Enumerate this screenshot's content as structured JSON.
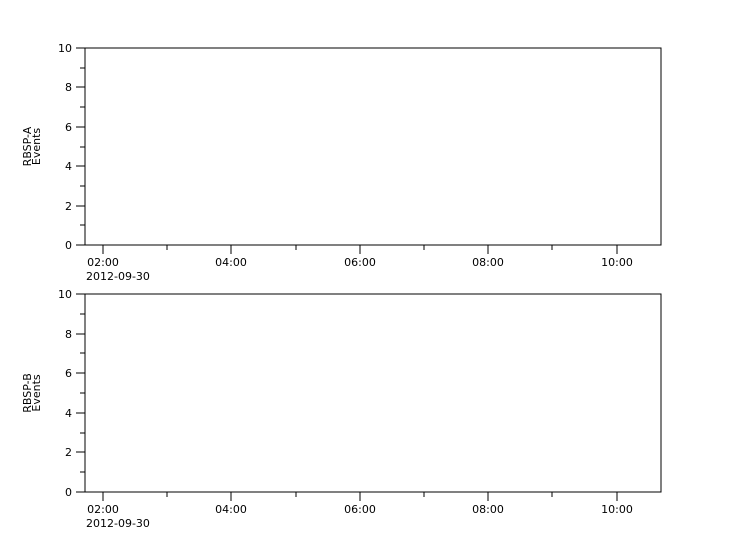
{
  "colors": {
    "background": "#ffffff",
    "axis": "#000000",
    "text": "#000000"
  },
  "chart_data": [
    {
      "type": "line",
      "title": "",
      "ylabel_lines": [
        "RBSP-A",
        "Events"
      ],
      "ylabel": "RBSP-A Events",
      "ylim": [
        0,
        10
      ],
      "ytick_major": [
        {
          "value": 0,
          "label": "0"
        },
        {
          "value": 2,
          "label": "2"
        },
        {
          "value": 4,
          "label": "4"
        },
        {
          "value": 6,
          "label": "6"
        },
        {
          "value": 8,
          "label": "8"
        },
        {
          "value": 10,
          "label": "10"
        }
      ],
      "ytick_minor_values": [
        1,
        3,
        5,
        7,
        9
      ],
      "x_axis_range_hours": [
        1.72,
        10.69
      ],
      "xtick_major": [
        {
          "hour": 2,
          "label": "02:00"
        },
        {
          "hour": 4,
          "label": "04:00"
        },
        {
          "hour": 6,
          "label": "06:00"
        },
        {
          "hour": 8,
          "label": "08:00"
        },
        {
          "hour": 10,
          "label": "10:00"
        }
      ],
      "xtick_minor_hours": [
        3,
        5,
        7,
        9
      ],
      "x_date_label": "2012-09-30",
      "grid": false,
      "legend": null,
      "series": []
    },
    {
      "type": "line",
      "title": "",
      "ylabel_lines": [
        "RBSP-B",
        "Events"
      ],
      "ylabel": "RBSP-B Events",
      "ylim": [
        0,
        10
      ],
      "ytick_major": [
        {
          "value": 0,
          "label": "0"
        },
        {
          "value": 2,
          "label": "2"
        },
        {
          "value": 4,
          "label": "4"
        },
        {
          "value": 6,
          "label": "6"
        },
        {
          "value": 8,
          "label": "8"
        },
        {
          "value": 10,
          "label": "10"
        }
      ],
      "ytick_minor_values": [
        1,
        3,
        5,
        7,
        9
      ],
      "x_axis_range_hours": [
        1.72,
        10.69
      ],
      "xtick_major": [
        {
          "hour": 2,
          "label": "02:00"
        },
        {
          "hour": 4,
          "label": "04:00"
        },
        {
          "hour": 6,
          "label": "06:00"
        },
        {
          "hour": 8,
          "label": "08:00"
        },
        {
          "hour": 10,
          "label": "10:00"
        }
      ],
      "xtick_minor_hours": [
        3,
        5,
        7,
        9
      ],
      "x_date_label": "2012-09-30",
      "grid": false,
      "legend": null,
      "series": []
    }
  ]
}
